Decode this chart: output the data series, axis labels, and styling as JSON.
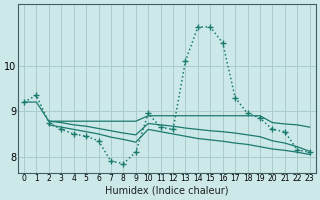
{
  "xlabel": "Humidex (Indice chaleur)",
  "bg_color": "#cce8e8",
  "grid_color": "#aacccc",
  "line_color": "#1a7a6e",
  "xlim": [
    -0.5,
    23.5
  ],
  "ylim": [
    7.65,
    11.35
  ],
  "yticks": [
    8,
    9,
    10
  ],
  "curve_dotted": {
    "x": [
      0,
      1,
      2,
      3,
      4,
      5,
      6,
      7,
      8,
      9,
      10,
      11,
      12,
      13,
      14,
      15,
      16,
      17,
      18,
      19,
      20,
      21,
      22,
      23
    ],
    "y": [
      9.2,
      9.35,
      8.75,
      8.6,
      8.5,
      8.45,
      8.35,
      7.9,
      7.85,
      8.1,
      8.95,
      8.65,
      8.6,
      10.1,
      10.85,
      10.85,
      10.5,
      9.3,
      8.95,
      8.85,
      8.6,
      8.55,
      8.15,
      8.1
    ]
  },
  "curve_flat": {
    "x": [
      2,
      3,
      4,
      5,
      6,
      7,
      8,
      9,
      10,
      11,
      12,
      13,
      14,
      15,
      16,
      17,
      18,
      19,
      20,
      21,
      22,
      23
    ],
    "y": [
      8.78,
      8.78,
      8.78,
      8.78,
      8.78,
      8.78,
      8.78,
      8.78,
      8.9,
      8.9,
      8.9,
      8.9,
      8.9,
      8.9,
      8.9,
      8.9,
      8.9,
      8.9,
      8.75,
      8.72,
      8.7,
      8.65
    ]
  },
  "curve_decline1": {
    "x": [
      0,
      1,
      2,
      3,
      4,
      5,
      6,
      7,
      8,
      9,
      10,
      11,
      12,
      13,
      14,
      15,
      16,
      17,
      18,
      19,
      20,
      21,
      22,
      23
    ],
    "y": [
      9.2,
      9.2,
      8.78,
      8.75,
      8.7,
      8.67,
      8.62,
      8.57,
      8.52,
      8.48,
      8.73,
      8.7,
      8.67,
      8.63,
      8.6,
      8.57,
      8.55,
      8.52,
      8.48,
      8.44,
      8.35,
      8.3,
      8.22,
      8.12
    ]
  },
  "curve_decline2": {
    "x": [
      2,
      3,
      4,
      5,
      6,
      7,
      8,
      9,
      10,
      11,
      12,
      13,
      14,
      15,
      16,
      17,
      18,
      19,
      20,
      21,
      22,
      23
    ],
    "y": [
      8.7,
      8.65,
      8.6,
      8.55,
      8.5,
      8.43,
      8.38,
      8.32,
      8.6,
      8.55,
      8.5,
      8.45,
      8.4,
      8.37,
      8.34,
      8.3,
      8.27,
      8.22,
      8.17,
      8.14,
      8.1,
      8.05
    ]
  }
}
